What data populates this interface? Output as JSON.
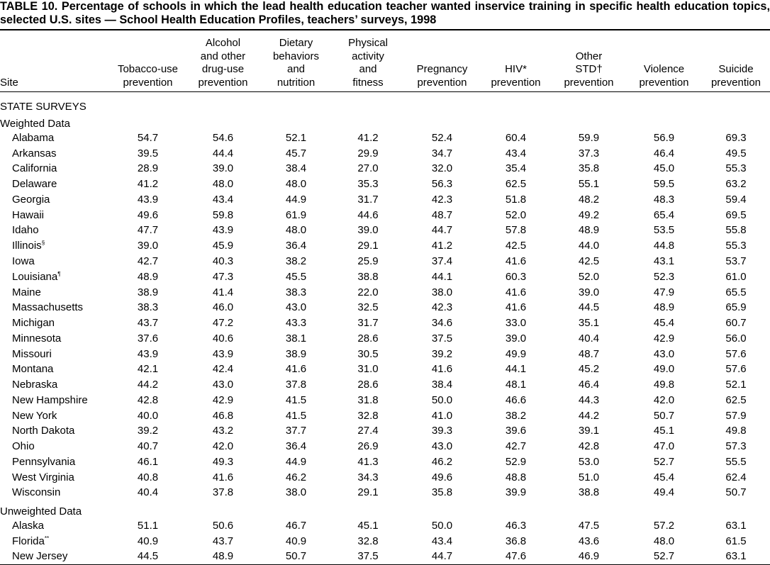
{
  "title": "TABLE 10. Percentage of schools in which the lead health education teacher wanted inservice training in specific health education topics, selected U.S. sites — School Health Education Profiles, teachers’ surveys, 1998",
  "columns": [
    {
      "lines": [
        "Site"
      ]
    },
    {
      "lines": [
        "Tobacco-use",
        "prevention"
      ]
    },
    {
      "lines": [
        "Alcohol",
        "and other",
        "drug-use",
        "prevention"
      ]
    },
    {
      "lines": [
        "Dietary",
        "behaviors",
        "and",
        "nutrition"
      ]
    },
    {
      "lines": [
        "Physical",
        "activity",
        "and",
        "fitness"
      ]
    },
    {
      "lines": [
        "Pregnancy",
        "prevention"
      ]
    },
    {
      "lines": [
        "HIV*",
        "prevention"
      ]
    },
    {
      "lines": [
        "Other",
        "STD†",
        "prevention"
      ]
    },
    {
      "lines": [
        "Violence",
        "prevention"
      ]
    },
    {
      "lines": [
        "Suicide",
        "prevention"
      ]
    }
  ],
  "section": "STATE SURVEYS",
  "groups": [
    {
      "label": "Weighted Data",
      "rows": [
        {
          "site": "Alabama",
          "values": [
            "54.7",
            "54.6",
            "52.1",
            "41.2",
            "52.4",
            "60.4",
            "59.9",
            "56.9",
            "69.3"
          ]
        },
        {
          "site": "Arkansas",
          "values": [
            "39.5",
            "44.4",
            "45.7",
            "29.9",
            "34.7",
            "43.4",
            "37.3",
            "46.4",
            "49.5"
          ]
        },
        {
          "site": "California",
          "values": [
            "28.9",
            "39.0",
            "38.4",
            "27.0",
            "32.0",
            "35.4",
            "35.8",
            "45.0",
            "55.3"
          ]
        },
        {
          "site": "Delaware",
          "values": [
            "41.2",
            "48.0",
            "48.0",
            "35.3",
            "56.3",
            "62.5",
            "55.1",
            "59.5",
            "63.2"
          ]
        },
        {
          "site": "Georgia",
          "values": [
            "43.9",
            "43.4",
            "44.9",
            "31.7",
            "42.3",
            "51.8",
            "48.2",
            "48.3",
            "59.4"
          ]
        },
        {
          "site": "Hawaii",
          "values": [
            "49.6",
            "59.8",
            "61.9",
            "44.6",
            "48.7",
            "52.0",
            "49.2",
            "65.4",
            "69.5"
          ]
        },
        {
          "site": "Idaho",
          "values": [
            "47.7",
            "43.9",
            "48.0",
            "39.0",
            "44.7",
            "57.8",
            "48.9",
            "53.5",
            "55.8"
          ]
        },
        {
          "site": "Illinois",
          "note": "§",
          "values": [
            "39.0",
            "45.9",
            "36.4",
            "29.1",
            "41.2",
            "42.5",
            "44.0",
            "44.8",
            "55.3"
          ]
        },
        {
          "site": "Iowa",
          "values": [
            "42.7",
            "40.3",
            "38.2",
            "25.9",
            "37.4",
            "41.6",
            "42.5",
            "43.1",
            "53.7"
          ]
        },
        {
          "site": "Louisiana",
          "note": "¶",
          "values": [
            "48.9",
            "47.3",
            "45.5",
            "38.8",
            "44.1",
            "60.3",
            "52.0",
            "52.3",
            "61.0"
          ]
        },
        {
          "site": "Maine",
          "values": [
            "38.9",
            "41.4",
            "38.3",
            "22.0",
            "38.0",
            "41.6",
            "39.0",
            "47.9",
            "65.5"
          ]
        },
        {
          "site": "Massachusetts",
          "values": [
            "38.3",
            "46.0",
            "43.0",
            "32.5",
            "42.3",
            "41.6",
            "44.5",
            "48.9",
            "65.9"
          ]
        },
        {
          "site": "Michigan",
          "values": [
            "43.7",
            "47.2",
            "43.3",
            "31.7",
            "34.6",
            "33.0",
            "35.1",
            "45.4",
            "60.7"
          ]
        },
        {
          "site": "Minnesota",
          "values": [
            "37.6",
            "40.6",
            "38.1",
            "28.6",
            "37.5",
            "39.0",
            "40.4",
            "42.9",
            "56.0"
          ]
        },
        {
          "site": "Missouri",
          "values": [
            "43.9",
            "43.9",
            "38.9",
            "30.5",
            "39.2",
            "49.9",
            "48.7",
            "43.0",
            "57.6"
          ]
        },
        {
          "site": "Montana",
          "values": [
            "42.1",
            "42.4",
            "41.6",
            "31.0",
            "41.6",
            "44.1",
            "45.2",
            "49.0",
            "57.6"
          ]
        },
        {
          "site": "Nebraska",
          "values": [
            "44.2",
            "43.0",
            "37.8",
            "28.6",
            "38.4",
            "48.1",
            "46.4",
            "49.8",
            "52.1"
          ]
        },
        {
          "site": "New Hampshire",
          "values": [
            "42.8",
            "42.9",
            "41.5",
            "31.8",
            "50.0",
            "46.6",
            "44.3",
            "42.0",
            "62.5"
          ]
        },
        {
          "site": "New York",
          "values": [
            "40.0",
            "46.8",
            "41.5",
            "32.8",
            "41.0",
            "38.2",
            "44.2",
            "50.7",
            "57.9"
          ]
        },
        {
          "site": "North Dakota",
          "values": [
            "39.2",
            "43.2",
            "37.7",
            "27.4",
            "39.3",
            "39.6",
            "39.1",
            "45.1",
            "49.8"
          ]
        },
        {
          "site": "Ohio",
          "values": [
            "40.7",
            "42.0",
            "36.4",
            "26.9",
            "43.0",
            "42.7",
            "42.8",
            "47.0",
            "57.3"
          ]
        },
        {
          "site": "Pennsylvania",
          "values": [
            "46.1",
            "49.3",
            "44.9",
            "41.3",
            "46.2",
            "52.9",
            "53.0",
            "52.7",
            "55.5"
          ]
        },
        {
          "site": "West Virginia",
          "values": [
            "40.8",
            "41.6",
            "46.2",
            "34.3",
            "49.6",
            "48.8",
            "51.0",
            "45.4",
            "62.4"
          ]
        },
        {
          "site": "Wisconsin",
          "values": [
            "40.4",
            "37.8",
            "38.0",
            "29.1",
            "35.8",
            "39.9",
            "38.8",
            "49.4",
            "50.7"
          ]
        }
      ]
    },
    {
      "label": "Unweighted Data",
      "rows": [
        {
          "site": "Alaska",
          "values": [
            "51.1",
            "50.6",
            "46.7",
            "45.1",
            "50.0",
            "46.3",
            "47.5",
            "57.2",
            "63.1"
          ]
        },
        {
          "site": "Florida",
          "note": "**",
          "values": [
            "40.9",
            "43.7",
            "40.9",
            "32.8",
            "43.4",
            "36.8",
            "43.6",
            "48.0",
            "61.5"
          ]
        },
        {
          "site": "New Jersey",
          "values": [
            "44.5",
            "48.9",
            "50.7",
            "37.5",
            "44.7",
            "47.6",
            "46.9",
            "52.7",
            "63.1"
          ]
        }
      ]
    }
  ]
}
